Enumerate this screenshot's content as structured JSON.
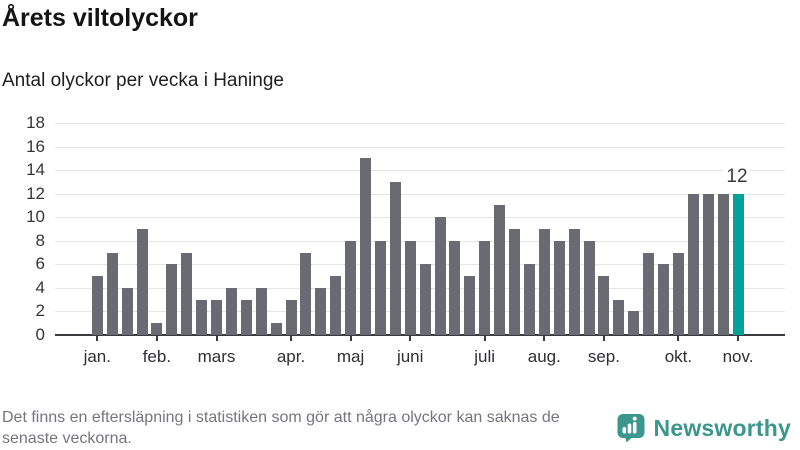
{
  "header": {
    "title": "Årets viltolyckor",
    "subtitle": "Antal olyckor per vecka i Haninge"
  },
  "chart_data": {
    "type": "bar",
    "title": "Årets viltolyckor",
    "subtitle": "Antal olyckor per vecka i Haninge",
    "xlabel": "",
    "ylabel": "",
    "ylim": [
      0,
      18
    ],
    "ytick_step": 2,
    "grid": true,
    "values": [
      5,
      7,
      4,
      9,
      1,
      6,
      7,
      3,
      3,
      4,
      3,
      4,
      1,
      3,
      7,
      4,
      5,
      8,
      15,
      8,
      13,
      8,
      6,
      10,
      8,
      5,
      8,
      11,
      9,
      6,
      9,
      8,
      9,
      8,
      5,
      3,
      2,
      7,
      6,
      7,
      12,
      12,
      12,
      12
    ],
    "x_months": [
      {
        "label": "jan.",
        "bar_index": 0
      },
      {
        "label": "feb.",
        "bar_index": 4
      },
      {
        "label": "mars",
        "bar_index": 8
      },
      {
        "label": "apr.",
        "bar_index": 13
      },
      {
        "label": "maj",
        "bar_index": 17
      },
      {
        "label": "juni",
        "bar_index": 21
      },
      {
        "label": "juli",
        "bar_index": 26
      },
      {
        "label": "aug.",
        "bar_index": 30
      },
      {
        "label": "sep.",
        "bar_index": 34
      },
      {
        "label": "okt.",
        "bar_index": 39
      },
      {
        "label": "nov.",
        "bar_index": 43
      }
    ],
    "highlight_last_bar": true,
    "last_value_label": "12",
    "colors": {
      "bar": "#6a6a72",
      "highlight": "#00a29a",
      "gridline": "#e5e5e5",
      "axis": "#3a3a40",
      "tick_label": "#36363a"
    },
    "legend": null
  },
  "footer": {
    "note_lines": [
      "Det finns en eftersläpning i statistiken som gör att några olyckor kan saknas de",
      "senaste veckorna."
    ],
    "brand": "Newsworthy",
    "brand_color": "#3b968e"
  }
}
